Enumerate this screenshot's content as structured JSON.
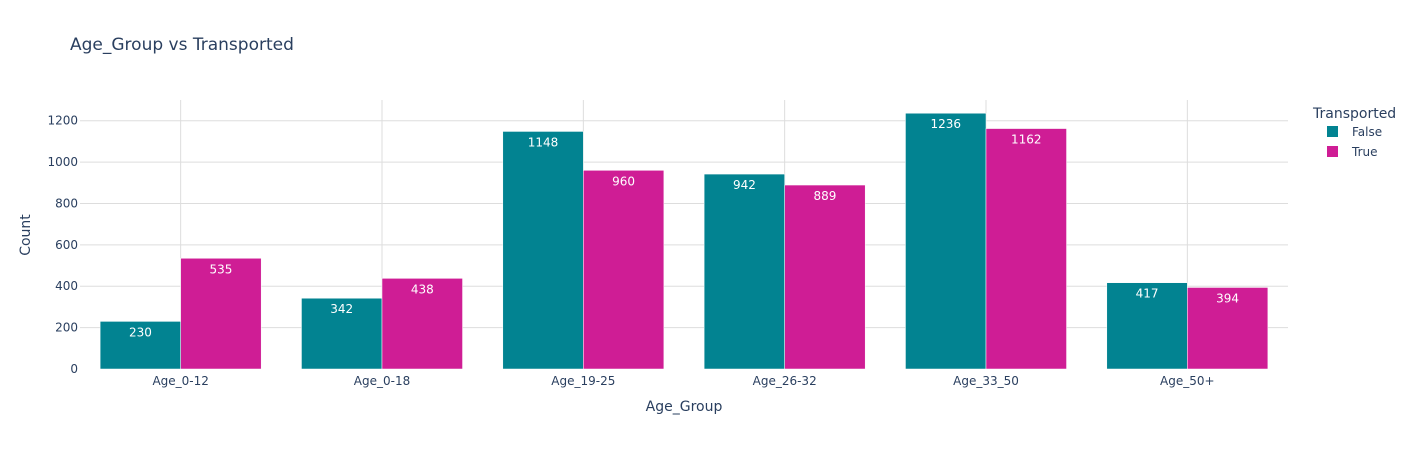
{
  "chart_data": {
    "type": "bar",
    "title": "Age_Group vs Transported",
    "xlabel": "Age_Group",
    "ylabel": "Count",
    "categories": [
      "Age_0-12",
      "Age_0-18",
      "Age_19-25",
      "Age_26-32",
      "Age_33_50",
      "Age_50+"
    ],
    "series": [
      {
        "name": "False",
        "color": "#028391",
        "values": [
          230,
          342,
          1148,
          942,
          1236,
          417
        ]
      },
      {
        "name": "True",
        "color": "#CF1D95",
        "values": [
          535,
          438,
          960,
          889,
          1162,
          394
        ]
      }
    ],
    "ylim": [
      0,
      1300
    ],
    "yticks": [
      0,
      200,
      400,
      600,
      800,
      1000,
      1200
    ],
    "grid": true,
    "legend": {
      "title": "Transported",
      "position": "top-right"
    }
  }
}
